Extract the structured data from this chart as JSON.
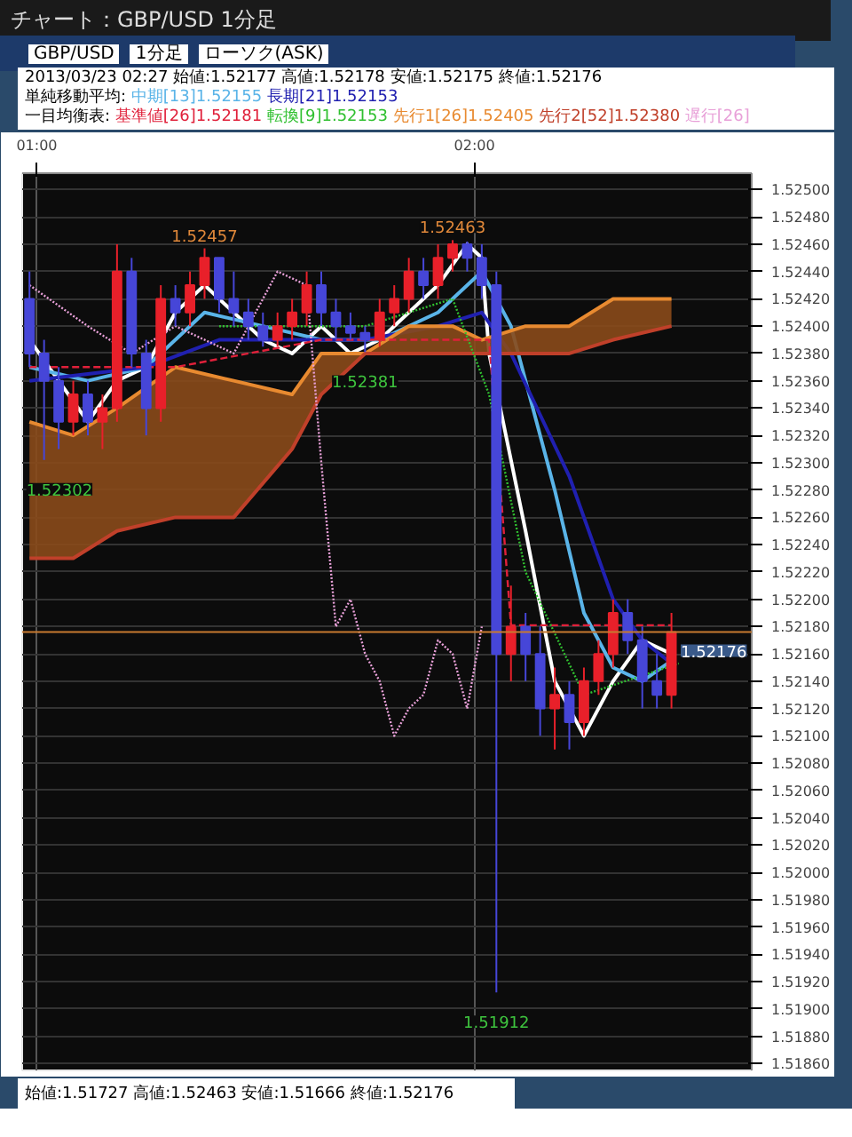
{
  "chart_data": {
    "type": "candlestick",
    "title": "チャート：GBP/USD 1分足",
    "subtitle": "2013/03/23 02:27 始値:1.52177 高値:1.52178 安値:1.52175 終値:1.52176",
    "annotations": [
      "GBP/USD",
      "1分足",
      "ローソク(ASK)",
      "単純移動平均:",
      "一目均衡表:",
      "始値:1.51727 高値:1.52463 安値:1.51666 終値:1.52176",
      {
        "text": "1.52457",
        "x": "2013-03-23T01:23",
        "y": 1.52457
      },
      {
        "text": "1.52463",
        "x": "2013-03-23T01:57",
        "y": 1.52463
      },
      {
        "text": "1.52381",
        "x": "2013-03-23T01:45",
        "y": 1.52381
      },
      {
        "text": "1.52302",
        "x": "2013-03-23T01:01",
        "y": 1.52302
      },
      {
        "text": "1.51912",
        "x": "2013-03-23T02:03",
        "y": 1.51912
      }
    ],
    "x": [
      "2013-03-23T00:59",
      "2013-03-23T01:01",
      "2013-03-23T01:03",
      "2013-03-23T01:05",
      "2013-03-23T01:07",
      "2013-03-23T01:09",
      "2013-03-23T01:11",
      "2013-03-23T01:13",
      "2013-03-23T01:15",
      "2013-03-23T01:17",
      "2013-03-23T01:19",
      "2013-03-23T01:21",
      "2013-03-23T01:23",
      "2013-03-23T01:25",
      "2013-03-23T01:27",
      "2013-03-23T01:29",
      "2013-03-23T01:31",
      "2013-03-23T01:33",
      "2013-03-23T01:35",
      "2013-03-23T01:37",
      "2013-03-23T01:39",
      "2013-03-23T01:41",
      "2013-03-23T01:43",
      "2013-03-23T01:45",
      "2013-03-23T01:47",
      "2013-03-23T01:49",
      "2013-03-23T01:51",
      "2013-03-23T01:53",
      "2013-03-23T01:55",
      "2013-03-23T01:57",
      "2013-03-23T01:59",
      "2013-03-23T02:01",
      "2013-03-23T02:03",
      "2013-03-23T02:05",
      "2013-03-23T02:07",
      "2013-03-23T02:09",
      "2013-03-23T02:11",
      "2013-03-23T02:13",
      "2013-03-23T02:15",
      "2013-03-23T02:17",
      "2013-03-23T02:19",
      "2013-03-23T02:21",
      "2013-03-23T02:23",
      "2013-03-23T02:25",
      "2013-03-23T02:27"
    ],
    "ohlc": [
      [
        1.5242,
        1.5244,
        1.5237,
        1.5238
      ],
      [
        1.5238,
        1.5239,
        1.52302,
        1.5236
      ],
      [
        1.5236,
        1.5237,
        1.5231,
        1.5233
      ],
      [
        1.5233,
        1.5236,
        1.5232,
        1.5235
      ],
      [
        1.5235,
        1.5236,
        1.5232,
        1.5233
      ],
      [
        1.5233,
        1.5235,
        1.5231,
        1.5234
      ],
      [
        1.5234,
        1.5246,
        1.5233,
        1.5244
      ],
      [
        1.5244,
        1.5245,
        1.5237,
        1.5238
      ],
      [
        1.5238,
        1.5239,
        1.5232,
        1.5234
      ],
      [
        1.5234,
        1.5243,
        1.5233,
        1.5242
      ],
      [
        1.5242,
        1.5243,
        1.524,
        1.5241
      ],
      [
        1.5241,
        1.5244,
        1.524,
        1.5243
      ],
      [
        1.5243,
        1.52457,
        1.5242,
        1.5245
      ],
      [
        1.5245,
        1.5245,
        1.5241,
        1.5242
      ],
      [
        1.5242,
        1.5244,
        1.524,
        1.5241
      ],
      [
        1.5241,
        1.5242,
        1.5239,
        1.524
      ],
      [
        1.524,
        1.5241,
        1.52385,
        1.5239
      ],
      [
        1.5239,
        1.5241,
        1.52385,
        1.524
      ],
      [
        1.524,
        1.5242,
        1.5239,
        1.5241
      ],
      [
        1.5241,
        1.5244,
        1.524,
        1.5243
      ],
      [
        1.5243,
        1.5244,
        1.524,
        1.5241
      ],
      [
        1.5241,
        1.5242,
        1.5239,
        1.524
      ],
      [
        1.524,
        1.5241,
        1.5239,
        1.52395
      ],
      [
        1.52395,
        1.524,
        1.52381,
        1.5239
      ],
      [
        1.5239,
        1.5242,
        1.52385,
        1.5241
      ],
      [
        1.5241,
        1.5243,
        1.524,
        1.5242
      ],
      [
        1.5242,
        1.5245,
        1.5241,
        1.5244
      ],
      [
        1.5244,
        1.5245,
        1.5242,
        1.5243
      ],
      [
        1.5243,
        1.5246,
        1.5242,
        1.5245
      ],
      [
        1.5245,
        1.52463,
        1.5244,
        1.5246
      ],
      [
        1.5246,
        1.52462,
        1.5244,
        1.5245
      ],
      [
        1.5245,
        1.5246,
        1.5242,
        1.5243
      ],
      [
        1.5243,
        1.5244,
        1.51912,
        1.5216
      ],
      [
        1.5216,
        1.5221,
        1.5214,
        1.5218
      ],
      [
        1.5218,
        1.5219,
        1.5214,
        1.5216
      ],
      [
        1.5216,
        1.5218,
        1.521,
        1.5212
      ],
      [
        1.5212,
        1.5215,
        1.5209,
        1.5213
      ],
      [
        1.5213,
        1.5214,
        1.5209,
        1.5211
      ],
      [
        1.5211,
        1.5215,
        1.521,
        1.5214
      ],
      [
        1.5214,
        1.5217,
        1.5213,
        1.5216
      ],
      [
        1.5216,
        1.522,
        1.5215,
        1.5219
      ],
      [
        1.5219,
        1.522,
        1.5216,
        1.5217
      ],
      [
        1.5217,
        1.5218,
        1.5212,
        1.5214
      ],
      [
        1.5214,
        1.5216,
        1.5212,
        1.5213
      ],
      [
        1.5213,
        1.5219,
        1.5212,
        1.52176
      ]
    ],
    "colors": [
      "#4646d8",
      "#4646d8",
      "#4646d8",
      "#e8202a",
      "#4646d8",
      "#e8202a",
      "#e8202a",
      "#4646d8",
      "#4646d8",
      "#e8202a",
      "#4646d8",
      "#e8202a",
      "#e8202a",
      "#4646d8",
      "#4646d8",
      "#4646d8",
      "#4646d8",
      "#e8202a",
      "#e8202a",
      "#e8202a",
      "#4646d8",
      "#4646d8",
      "#4646d8",
      "#4646d8",
      "#e8202a",
      "#e8202a",
      "#e8202a",
      "#4646d8",
      "#e8202a",
      "#e8202a",
      "#4646d8",
      "#4646d8",
      "#4646d8",
      "#e8202a",
      "#4646d8",
      "#4646d8",
      "#e8202a",
      "#4646d8",
      "#e8202a",
      "#e8202a",
      "#e8202a",
      "#4646d8",
      "#4646d8",
      "#4646d8",
      "#e8202a"
    ],
    "series": [
      {
        "type": "line",
        "color": "#ffffff",
        "x": [
          "2013-03-23T00:59",
          "2013-03-23T01:03",
          "2013-03-23T01:07",
          "2013-03-23T01:11",
          "2013-03-23T01:15",
          "2013-03-23T01:19",
          "2013-03-23T01:23",
          "2013-03-23T01:27",
          "2013-03-23T01:31",
          "2013-03-23T01:35",
          "2013-03-23T01:39",
          "2013-03-23T01:43",
          "2013-03-23T01:47",
          "2013-03-23T01:51",
          "2013-03-23T01:55",
          "2013-03-23T01:59",
          "2013-03-23T02:01",
          "2013-03-23T02:02",
          "2013-03-23T02:07",
          "2013-03-23T02:11",
          "2013-03-23T02:15",
          "2013-03-23T02:19",
          "2013-03-23T02:23",
          "2013-03-23T02:27"
        ],
        "values": [
          1.5239,
          1.5236,
          1.5233,
          1.5236,
          1.5237,
          1.5241,
          1.5243,
          1.5241,
          1.5239,
          1.5238,
          1.524,
          1.5238,
          1.5239,
          1.5241,
          1.5243,
          1.5246,
          1.5245,
          1.5238,
          1.5225,
          1.5214,
          1.521,
          1.5214,
          1.5217,
          1.5216
        ]
      },
      {
        "type": "line",
        "name": "中期[13]1.52155",
        "color": "#5ab4e8",
        "x": [
          "2013-03-23T00:59",
          "2013-03-23T01:07",
          "2013-03-23T01:15",
          "2013-03-23T01:23",
          "2013-03-23T01:31",
          "2013-03-23T01:39",
          "2013-03-23T01:47",
          "2013-03-23T01:55",
          "2013-03-23T02:01",
          "2013-03-23T02:05",
          "2013-03-23T02:11",
          "2013-03-23T02:15",
          "2013-03-23T02:19",
          "2013-03-23T02:23",
          "2013-03-23T02:27"
        ],
        "values": [
          1.5237,
          1.5236,
          1.5237,
          1.5241,
          1.524,
          1.5239,
          1.5239,
          1.5241,
          1.5244,
          1.524,
          1.5228,
          1.5219,
          1.5215,
          1.5214,
          1.52155
        ]
      },
      {
        "type": "line",
        "name": "長期[21]1.52153",
        "color": "#2020b0",
        "x": [
          "2013-03-23T00:59",
          "2013-03-23T01:15",
          "2013-03-23T01:25",
          "2013-03-23T01:35",
          "2013-03-23T01:45",
          "2013-03-23T01:55",
          "2013-03-23T02:01",
          "2013-03-23T02:05",
          "2013-03-23T02:13",
          "2013-03-23T02:19",
          "2013-03-23T02:23",
          "2013-03-23T02:27"
        ],
        "values": [
          1.5236,
          1.5237,
          1.5239,
          1.5239,
          1.5239,
          1.524,
          1.5241,
          1.5238,
          1.5229,
          1.522,
          1.5217,
          1.52153
        ]
      },
      {
        "type": "line",
        "name": "基準値[26]1.52181",
        "color": "#e0203a",
        "line_style": "dashed",
        "x": [
          "2013-03-23T00:59",
          "2013-03-23T01:19",
          "2013-03-23T01:39",
          "2013-03-23T02:02",
          "2013-03-23T02:05",
          "2013-03-23T02:27"
        ],
        "values": [
          1.5237,
          1.5237,
          1.5239,
          1.5239,
          1.52181,
          1.52181
        ]
      },
      {
        "type": "line",
        "name": "転換[9]1.52153",
        "color": "#30c030",
        "line_style": "dotted",
        "x": [
          "2013-03-23T01:25",
          "2013-03-23T01:45",
          "2013-03-23T01:57",
          "2013-03-23T02:02",
          "2013-03-23T02:07",
          "2013-03-23T02:15",
          "2013-03-23T02:28"
        ],
        "values": [
          1.524,
          1.524,
          1.5242,
          1.5235,
          1.5222,
          1.5213,
          1.52153
        ]
      },
      {
        "type": "line",
        "name": "先行1[26]1.52405",
        "color": "#e88a30",
        "x": [
          "2013-03-23T00:59",
          "2013-03-23T01:05",
          "2013-03-23T01:11",
          "2013-03-23T01:19",
          "2013-03-23T01:27",
          "2013-03-23T01:35",
          "2013-03-23T01:39",
          "2013-03-23T01:45",
          "2013-03-23T01:51",
          "2013-03-23T01:57",
          "2013-03-23T02:01",
          "2013-03-23T02:07",
          "2013-03-23T02:13",
          "2013-03-23T02:19",
          "2013-03-23T02:27"
        ],
        "values": [
          1.5233,
          1.5232,
          1.5234,
          1.5237,
          1.5236,
          1.5235,
          1.5238,
          1.5238,
          1.524,
          1.524,
          1.5239,
          1.524,
          1.524,
          1.5242,
          1.5242
        ],
        "upper": [
          1.5233,
          1.5232,
          1.5234,
          1.5237,
          1.5236,
          1.5235,
          1.5238,
          1.5238,
          1.524,
          1.524,
          1.5239,
          1.524,
          1.524,
          1.5242,
          1.5242
        ],
        "lower": [
          1.5223,
          1.5223,
          1.5225,
          1.5226,
          1.5226,
          1.5231,
          1.5235,
          1.5238,
          1.5238,
          1.5238,
          1.5238,
          1.5238,
          1.5238,
          1.5239,
          1.524
        ]
      },
      {
        "type": "line",
        "name": "先行2[52]1.52380",
        "color": "#c0402a",
        "x": [
          "2013-03-23T00:59",
          "2013-03-23T01:05",
          "2013-03-23T01:11",
          "2013-03-23T01:19",
          "2013-03-23T01:27",
          "2013-03-23T01:35",
          "2013-03-23T01:39",
          "2013-03-23T01:45",
          "2013-03-23T01:51",
          "2013-03-23T01:57",
          "2013-03-23T02:01",
          "2013-03-23T02:07",
          "2013-03-23T02:13",
          "2013-03-23T02:19",
          "2013-03-23T02:27"
        ],
        "values": [
          1.5223,
          1.5223,
          1.5225,
          1.5226,
          1.5226,
          1.5231,
          1.5235,
          1.5238,
          1.5238,
          1.5238,
          1.5238,
          1.5238,
          1.5238,
          1.5239,
          1.524
        ]
      },
      {
        "type": "line",
        "name": "遅行[26]",
        "color": "#e8a0d8",
        "line_style": "dotted",
        "x": [
          "2013-03-23T00:59",
          "2013-03-23T01:07",
          "2013-03-23T01:13",
          "2013-03-23T01:19",
          "2013-03-23T01:27",
          "2013-03-23T01:33",
          "2013-03-23T01:37",
          "2013-03-23T01:39",
          "2013-03-23T01:41",
          "2013-03-23T01:43",
          "2013-03-23T01:45",
          "2013-03-23T01:47",
          "2013-03-23T01:49",
          "2013-03-23T01:51",
          "2013-03-23T01:53",
          "2013-03-23T01:55",
          "2013-03-23T01:57",
          "2013-03-23T01:59",
          "2013-03-23T02:01"
        ],
        "values": [
          1.5243,
          1.524,
          1.5238,
          1.524,
          1.5238,
          1.5244,
          1.5243,
          1.523,
          1.5218,
          1.522,
          1.5216,
          1.5214,
          1.521,
          1.5212,
          1.5213,
          1.5217,
          1.5216,
          1.5212,
          1.5218
        ]
      }
    ],
    "ref_lines": [
      {
        "axis": "y",
        "value": 1.52176,
        "label": "1.52176",
        "color": "#c87a30"
      }
    ],
    "xlim": [
      "2013-03-23T00:58",
      "2013-03-23T02:38"
    ],
    "xticks": [
      {
        "value": "2013-03-23T01:00",
        "label": "01:00"
      },
      {
        "value": "2013-03-23T02:00",
        "label": "02:00"
      }
    ],
    "ylim": [
      1.51855,
      1.52512
    ],
    "yticks": [
      {
        "value": 1.5186,
        "label": "1.51860"
      },
      {
        "value": 1.5188,
        "label": "1.51880"
      },
      {
        "value": 1.519,
        "label": "1.51900"
      },
      {
        "value": 1.5192,
        "label": "1.51920"
      },
      {
        "value": 1.5194,
        "label": "1.51940"
      },
      {
        "value": 1.5196,
        "label": "1.51960"
      },
      {
        "value": 1.5198,
        "label": "1.51980"
      },
      {
        "value": 1.52,
        "label": "1.52000"
      },
      {
        "value": 1.5202,
        "label": "1.52020"
      },
      {
        "value": 1.5204,
        "label": "1.52040"
      },
      {
        "value": 1.5206,
        "label": "1.52060"
      },
      {
        "value": 1.5208,
        "label": "1.52080"
      },
      {
        "value": 1.521,
        "label": "1.52100"
      },
      {
        "value": 1.5212,
        "label": "1.52120"
      },
      {
        "value": 1.5214,
        "label": "1.52140"
      },
      {
        "value": 1.5216,
        "label": "1.52160"
      },
      {
        "value": 1.5218,
        "label": "1.52180"
      },
      {
        "value": 1.522,
        "label": "1.52200"
      },
      {
        "value": 1.5222,
        "label": "1.52220"
      },
      {
        "value": 1.5224,
        "label": "1.52240"
      },
      {
        "value": 1.5226,
        "label": "1.52260"
      },
      {
        "value": 1.5228,
        "label": "1.52280"
      },
      {
        "value": 1.523,
        "label": "1.52300"
      },
      {
        "value": 1.5232,
        "label": "1.52320"
      },
      {
        "value": 1.5234,
        "label": "1.52340"
      },
      {
        "value": 1.5236,
        "label": "1.52360"
      },
      {
        "value": 1.5238,
        "label": "1.52380"
      },
      {
        "value": 1.524,
        "label": "1.52400"
      },
      {
        "value": 1.5242,
        "label": "1.52420"
      },
      {
        "value": 1.5244,
        "label": "1.52440"
      },
      {
        "value": 1.5246,
        "label": "1.52460"
      },
      {
        "value": 1.5248,
        "label": "1.52480"
      },
      {
        "value": 1.525,
        "label": "1.52500"
      }
    ],
    "grid": true,
    "legend": "top",
    "marker": "none"
  }
}
